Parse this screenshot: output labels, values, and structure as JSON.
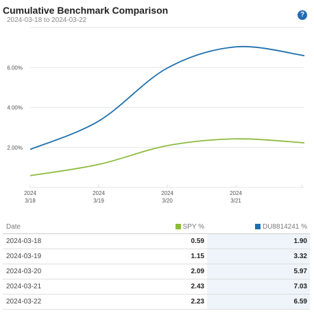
{
  "header": {
    "title": "Cumulative Benchmark Comparison",
    "date_range": "2024-03-18 to 2024-03-22",
    "help_glyph": "?"
  },
  "colors": {
    "spy": "#8dbb3c",
    "du": "#1c6fae",
    "help": "#2469b3"
  },
  "chart_data": {
    "type": "line",
    "title": "",
    "xlabel": "",
    "ylabel": "",
    "x": [
      "2024-03-18",
      "2024-03-19",
      "2024-03-20",
      "2024-03-21",
      "2024-03-22"
    ],
    "x_tick_labels": [
      {
        "year": "2024",
        "day": "3/18"
      },
      {
        "year": "2024",
        "day": "3/19"
      },
      {
        "year": "2024",
        "day": "3/20"
      },
      {
        "year": "2024",
        "day": "3/21"
      }
    ],
    "y_tick_labels": [
      "2.00%",
      "4.00%",
      "6.00%"
    ],
    "y_ticks": [
      2,
      4,
      6
    ],
    "ylim": [
      0,
      8
    ],
    "grid": "horizontal",
    "series": [
      {
        "name": "SPY %",
        "color": "#8dbb3c",
        "values": [
          0.59,
          1.15,
          2.09,
          2.43,
          2.23
        ]
      },
      {
        "name": "DU8814241 %",
        "color": "#1c6fae",
        "values": [
          1.9,
          3.32,
          5.97,
          7.03,
          6.59
        ]
      }
    ]
  },
  "table": {
    "columns": {
      "date": "Date",
      "spy": "SPY %",
      "du": "DU8814241 %"
    },
    "rows": [
      {
        "date": "2024-03-18",
        "spy": "0.59",
        "du": "1.90"
      },
      {
        "date": "2024-03-19",
        "spy": "1.15",
        "du": "3.32"
      },
      {
        "date": "2024-03-20",
        "spy": "2.09",
        "du": "5.97"
      },
      {
        "date": "2024-03-21",
        "spy": "2.43",
        "du": "7.03"
      },
      {
        "date": "2024-03-22",
        "spy": "2.23",
        "du": "6.59"
      }
    ]
  }
}
